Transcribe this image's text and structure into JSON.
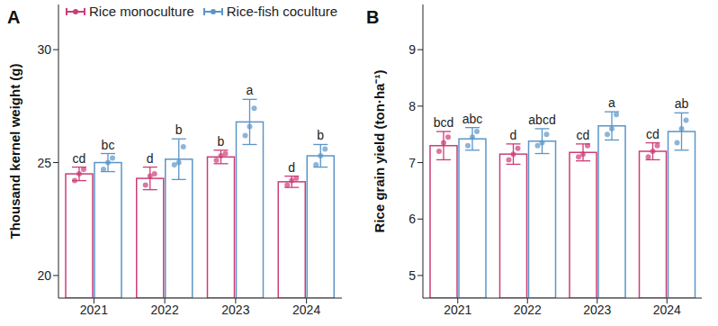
{
  "chart_data": [
    {
      "type": "bar",
      "panel": "A",
      "y_label": "Thousand kernel weight (g)",
      "categories": [
        "2021",
        "2022",
        "2023",
        "2024"
      ],
      "ylim": [
        19,
        32
      ],
      "yticks": [
        20,
        25,
        30
      ],
      "legend": "top left",
      "series": [
        {
          "name": "Rice monoculture",
          "color": "#cc3d77",
          "values": [
            24.5,
            24.3,
            25.25,
            24.15
          ],
          "errors": [
            0.3,
            0.5,
            0.3,
            0.25
          ],
          "letters": [
            "cd",
            "d",
            "b",
            "d"
          ],
          "points": [
            [
              24.2,
              24.5,
              24.7
            ],
            [
              24.0,
              24.4,
              24.5
            ],
            [
              25.1,
              25.3,
              25.4
            ],
            [
              24.0,
              24.2,
              24.3
            ]
          ]
        },
        {
          "name": "Rice-fish coculture",
          "color": "#5b95c8",
          "values": [
            25.0,
            25.15,
            26.8,
            25.3
          ],
          "errors": [
            0.4,
            0.9,
            1.0,
            0.5
          ],
          "letters": [
            "bc",
            "b",
            "a",
            "b"
          ],
          "points": [
            [
              24.7,
              25.0,
              25.2
            ],
            [
              24.9,
              25.0,
              25.7
            ],
            [
              26.2,
              26.6,
              27.4
            ],
            [
              24.9,
              25.3,
              25.6
            ]
          ]
        }
      ]
    },
    {
      "type": "bar",
      "panel": "B",
      "y_label": "Rice grain yield (ton·ha⁻¹)",
      "categories": [
        "2021",
        "2022",
        "2023",
        "2024"
      ],
      "ylim": [
        4.6,
        9.8
      ],
      "yticks": [
        5,
        6,
        7,
        8,
        9
      ],
      "series": [
        {
          "name": "Rice monoculture",
          "color": "#cc3d77",
          "values": [
            7.3,
            7.15,
            7.18,
            7.2
          ],
          "errors": [
            0.25,
            0.18,
            0.15,
            0.15
          ],
          "letters": [
            "bcd",
            "d",
            "cd",
            "cd"
          ],
          "points": [
            [
              7.2,
              7.35,
              7.45
            ],
            [
              7.05,
              7.15,
              7.25
            ],
            [
              7.1,
              7.15,
              7.3
            ],
            [
              7.1,
              7.2,
              7.3
            ]
          ]
        },
        {
          "name": "Rice-fish coculture",
          "color": "#5b95c8",
          "values": [
            7.42,
            7.38,
            7.65,
            7.55
          ],
          "errors": [
            0.2,
            0.22,
            0.25,
            0.33
          ],
          "letters": [
            "abc",
            "abcd",
            "a",
            "ab"
          ],
          "points": [
            [
              7.3,
              7.45,
              7.55
            ],
            [
              7.3,
              7.35,
              7.5
            ],
            [
              7.5,
              7.6,
              7.85
            ],
            [
              7.35,
              7.6,
              7.75
            ]
          ]
        }
      ]
    }
  ]
}
